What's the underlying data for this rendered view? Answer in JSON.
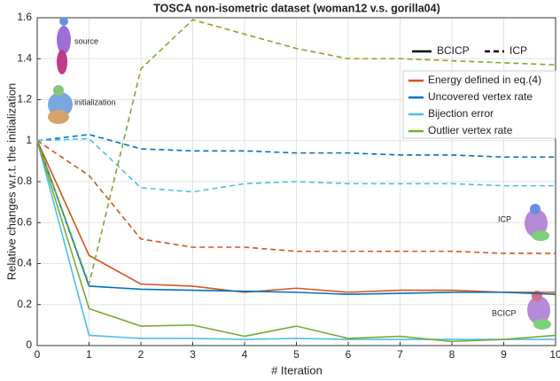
{
  "chart_data": {
    "type": "line",
    "title": "TOSCA non-isometric dataset (woman12 v.s. gorilla04)",
    "x_label": "# Iteration",
    "y_label": "Relative changes w.r.t. the initialization",
    "x": [
      0,
      1,
      2,
      3,
      4,
      5,
      6,
      7,
      8,
      9,
      10
    ],
    "xlim": [
      0,
      10
    ],
    "xticks": [
      0,
      1,
      2,
      3,
      4,
      5,
      6,
      7,
      8,
      9,
      10
    ],
    "ylim": [
      0,
      1.6
    ],
    "yticks": [
      0,
      0.2,
      0.4,
      0.6,
      0.8,
      1,
      1.2,
      1.4,
      1.6
    ],
    "grid": true,
    "line_styles": [
      {
        "name": "BCICP",
        "dash": "solid"
      },
      {
        "name": "ICP",
        "dash": "dashed"
      }
    ],
    "series": [
      {
        "name": "Energy defined in eq.(4)",
        "color": "#d95319",
        "values": [
          [
            1,
            0.44,
            0.3,
            0.29,
            0.26,
            0.28,
            0.26,
            0.27,
            0.27,
            0.26,
            0.26
          ],
          [
            1,
            0.83,
            0.52,
            0.48,
            0.48,
            0.46,
            0.46,
            0.46,
            0.46,
            0.45,
            0.45
          ]
        ]
      },
      {
        "name": "Uncovered vertex rate",
        "color": "#0072bd",
        "values": [
          [
            1,
            0.29,
            0.275,
            0.27,
            0.265,
            0.26,
            0.25,
            0.255,
            0.26,
            0.26,
            0.25
          ],
          [
            1,
            1.03,
            0.96,
            0.95,
            0.95,
            0.94,
            0.94,
            0.93,
            0.93,
            0.92,
            0.92
          ]
        ]
      },
      {
        "name": "Bijection error",
        "color": "#4dbeee",
        "values": [
          [
            1,
            0.05,
            0.035,
            0.035,
            0.03,
            0.035,
            0.03,
            0.03,
            0.03,
            0.03,
            0.03
          ],
          [
            1,
            1.01,
            0.77,
            0.75,
            0.79,
            0.8,
            0.79,
            0.79,
            0.79,
            0.78,
            0.78
          ]
        ]
      },
      {
        "name": "Outlier vertex rate",
        "color": "#77ac30",
        "values": [
          [
            1,
            0.18,
            0.095,
            0.1,
            0.045,
            0.095,
            0.035,
            0.045,
            0.02,
            0.03,
            0.05
          ],
          [
            1,
            0.3,
            1.35,
            1.59,
            1.52,
            1.45,
            1.4,
            1.4,
            1.39,
            1.38,
            1.37
          ]
        ]
      }
    ],
    "annotations": [
      "source",
      "initialization",
      "ICP",
      "BCICP"
    ]
  }
}
